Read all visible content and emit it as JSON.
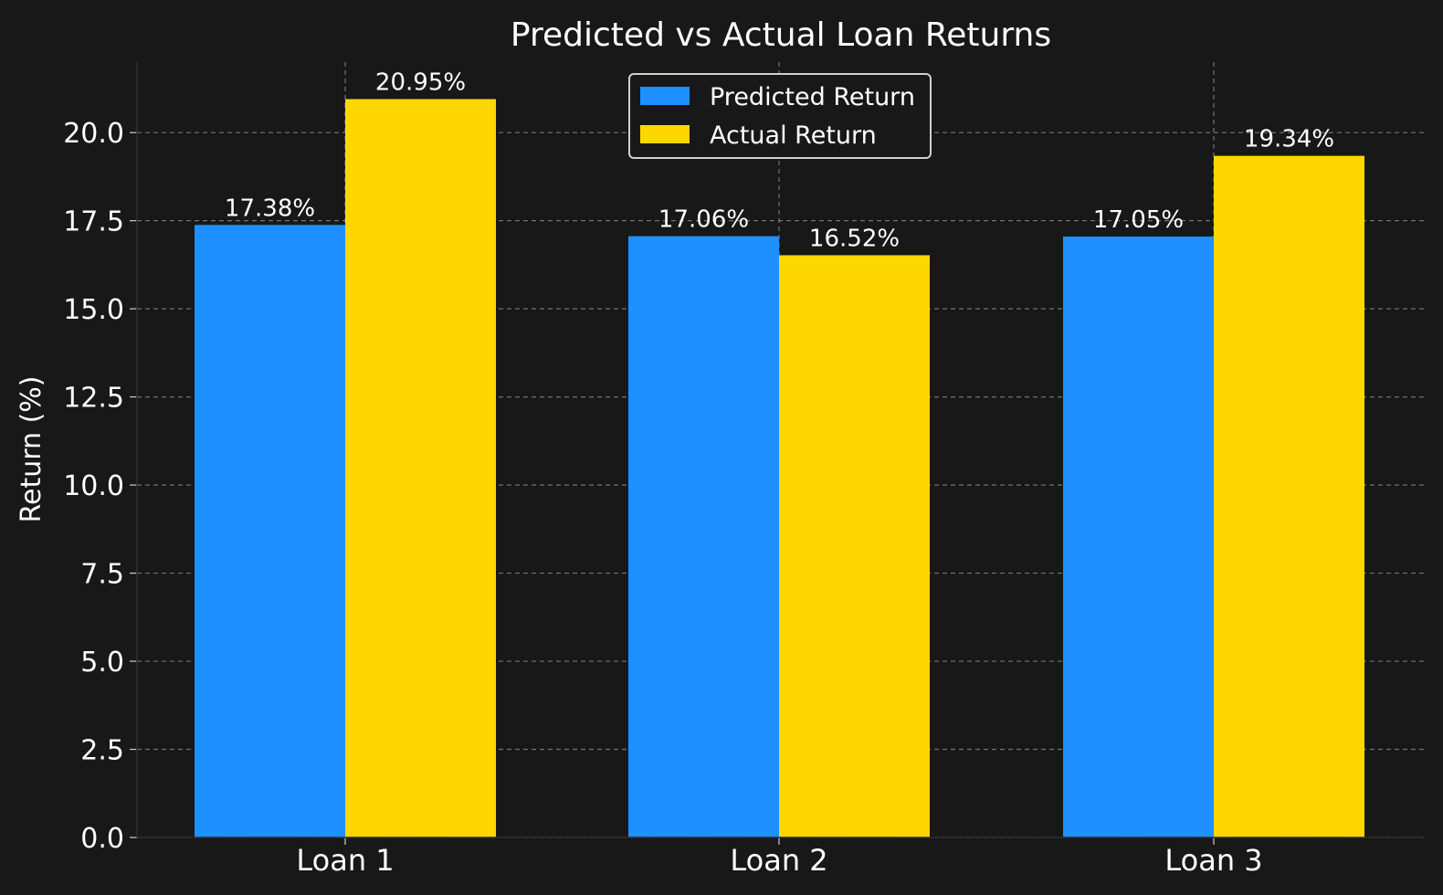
{
  "chart_data": {
    "type": "bar",
    "title": "Predicted vs Actual Loan Returns",
    "ylabel": "Return (%)",
    "xlabel": "",
    "categories": [
      "Loan 1",
      "Loan 2",
      "Loan 3"
    ],
    "ylim": [
      0,
      22
    ],
    "yticks": [
      0.0,
      2.5,
      5.0,
      7.5,
      10.0,
      12.5,
      15.0,
      17.5,
      20.0
    ],
    "ytick_labels": [
      "0.0",
      "2.5",
      "5.0",
      "7.5",
      "10.0",
      "12.5",
      "15.0",
      "17.5",
      "20.0"
    ],
    "grid": true,
    "legend_position": "top-center",
    "series": [
      {
        "name": "Predicted Return",
        "color": "#1e90ff",
        "values": [
          17.38,
          17.06,
          17.05
        ],
        "labels": [
          "17.38%",
          "17.06%",
          "17.05%"
        ]
      },
      {
        "name": "Actual Return",
        "color": "#ffd700",
        "values": [
          20.95,
          16.52,
          19.34
        ],
        "labels": [
          "20.95%",
          "16.52%",
          "19.34%"
        ]
      }
    ]
  }
}
